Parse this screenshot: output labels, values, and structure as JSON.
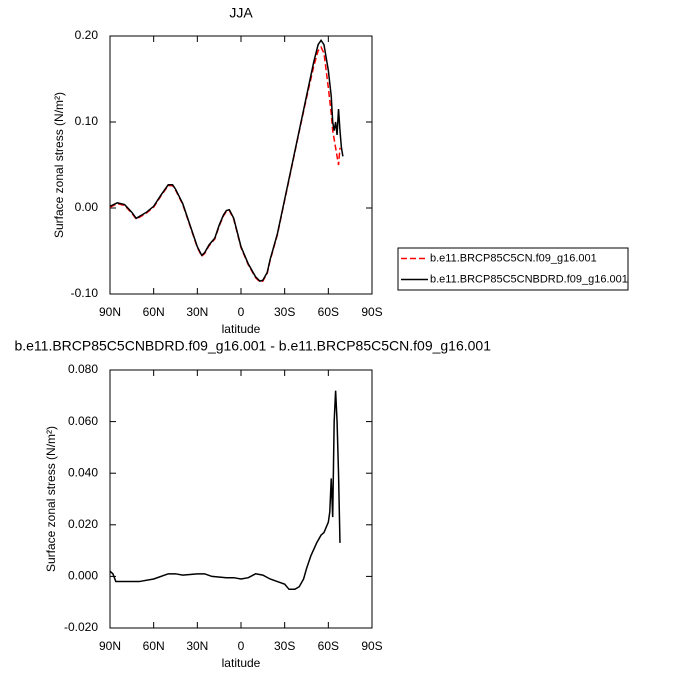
{
  "chart_data": [
    {
      "type": "line",
      "title": "JJA",
      "xlabel": "latitude",
      "ylabel": "Surface zonal stress (N/m²)",
      "xlim": [
        90,
        -90
      ],
      "ylim": [
        -0.1,
        0.2
      ],
      "xticks": [
        {
          "value": 90,
          "label": "90N"
        },
        {
          "value": 60,
          "label": "60N"
        },
        {
          "value": 30,
          "label": "30N"
        },
        0,
        {
          "value": -30,
          "label": "30S"
        },
        {
          "value": -60,
          "label": "60S"
        },
        {
          "value": -90,
          "label": "90S"
        }
      ],
      "yticks": [
        {
          "value": -0.1,
          "label": "-0.10"
        },
        {
          "value": 0,
          "label": "0.00"
        },
        {
          "value": 0.1,
          "label": "0.10"
        },
        {
          "value": 0.2,
          "label": "0.20"
        }
      ],
      "legend": "outside-right",
      "x": [
        90,
        85,
        80,
        75,
        72,
        68,
        65,
        60,
        55,
        50,
        47,
        45,
        40,
        35,
        30,
        27,
        25,
        22,
        18,
        15,
        12,
        10,
        8,
        5,
        0,
        -5,
        -10,
        -13,
        -15,
        -18,
        -20,
        -25,
        -30,
        -35,
        -40,
        -45,
        -50,
        -53,
        -55,
        -57,
        -60,
        -62,
        -63,
        -64,
        -65,
        -66,
        -67,
        -68,
        -69,
        -70
      ],
      "series": [
        {
          "name": "b.e11.BRCP85C5CN.f09_g16.001",
          "color": "#ff0000",
          "linestyle": "dashed",
          "values": [
            0.001,
            0.005,
            0.003,
            -0.006,
            -0.013,
            -0.009,
            -0.006,
            0.001,
            0.014,
            0.026,
            0.026,
            0.021,
            0.004,
            -0.021,
            -0.046,
            -0.056,
            -0.053,
            -0.044,
            -0.036,
            -0.021,
            -0.009,
            -0.004,
            -0.003,
            -0.013,
            -0.046,
            -0.066,
            -0.081,
            -0.086,
            -0.085,
            -0.076,
            -0.061,
            -0.031,
            0.009,
            0.049,
            0.089,
            0.128,
            0.165,
            0.183,
            0.187,
            0.18,
            0.14,
            0.11,
            0.09,
            0.08,
            0.07,
            0.06,
            0.05,
            0.07,
            null,
            null
          ]
        },
        {
          "name": "b.e11.BRCP85C5CNBDRD.f09_g16.001",
          "color": "#000000",
          "linestyle": "solid",
          "values": [
            0.002,
            0.006,
            0.004,
            -0.005,
            -0.012,
            -0.008,
            -0.005,
            0.002,
            0.015,
            0.027,
            0.027,
            0.022,
            0.005,
            -0.02,
            -0.045,
            -0.055,
            -0.052,
            -0.043,
            -0.035,
            -0.02,
            -0.008,
            -0.003,
            -0.002,
            -0.012,
            -0.045,
            -0.065,
            -0.08,
            -0.085,
            -0.084,
            -0.075,
            -0.06,
            -0.03,
            0.01,
            0.05,
            0.09,
            0.13,
            0.17,
            0.19,
            0.195,
            0.19,
            0.16,
            0.13,
            0.1,
            0.09,
            0.1,
            0.085,
            0.115,
            0.09,
            0.07,
            0.06
          ]
        }
      ]
    },
    {
      "type": "line",
      "title": "b.e11.BRCP85C5CNBDRD.f09_g16.001 - b.e11.BRCP85C5CN.f09_g16.001",
      "xlabel": "latitude",
      "ylabel": "Surface zonal stress (N/m²)",
      "xlim": [
        90,
        -90
      ],
      "ylim": [
        -0.02,
        0.08
      ],
      "xticks": [
        {
          "value": 90,
          "label": "90N"
        },
        {
          "value": 60,
          "label": "60N"
        },
        {
          "value": 30,
          "label": "30N"
        },
        0,
        {
          "value": -30,
          "label": "30S"
        },
        {
          "value": -60,
          "label": "60S"
        },
        {
          "value": -90,
          "label": "90S"
        }
      ],
      "yticks": [
        {
          "value": -0.02,
          "label": "-0.020"
        },
        {
          "value": 0,
          "label": "0.000"
        },
        {
          "value": 0.02,
          "label": "0.020"
        },
        {
          "value": 0.04,
          "label": "0.040"
        },
        {
          "value": 0.06,
          "label": "0.060"
        },
        {
          "value": 0.08,
          "label": "0.080"
        }
      ],
      "x": [
        90,
        88,
        86,
        80,
        70,
        60,
        50,
        45,
        40,
        30,
        25,
        20,
        10,
        5,
        0,
        -5,
        -10,
        -15,
        -20,
        -25,
        -30,
        -33,
        -37,
        -40,
        -43,
        -45,
        -48,
        -52,
        -55,
        -57,
        -60,
        -61,
        -62,
        -63,
        -64,
        -65,
        -66,
        -67,
        -68
      ],
      "series": [
        {
          "color": "#000000",
          "linestyle": "solid",
          "values": [
            0.002,
            0.001,
            -0.002,
            -0.002,
            -0.002,
            -0.001,
            0.001,
            0.001,
            0.0005,
            0.001,
            0.001,
            0,
            -0.0005,
            -0.0005,
            -0.001,
            -0.0005,
            0.001,
            0.0005,
            -0.001,
            -0.002,
            -0.003,
            -0.005,
            -0.005,
            -0.004,
            -0.001,
            0.003,
            0.008,
            0.013,
            0.016,
            0.017,
            0.021,
            0.025,
            0.038,
            0.023,
            0.06,
            0.072,
            0.06,
            0.04,
            0.013
          ]
        }
      ]
    }
  ]
}
